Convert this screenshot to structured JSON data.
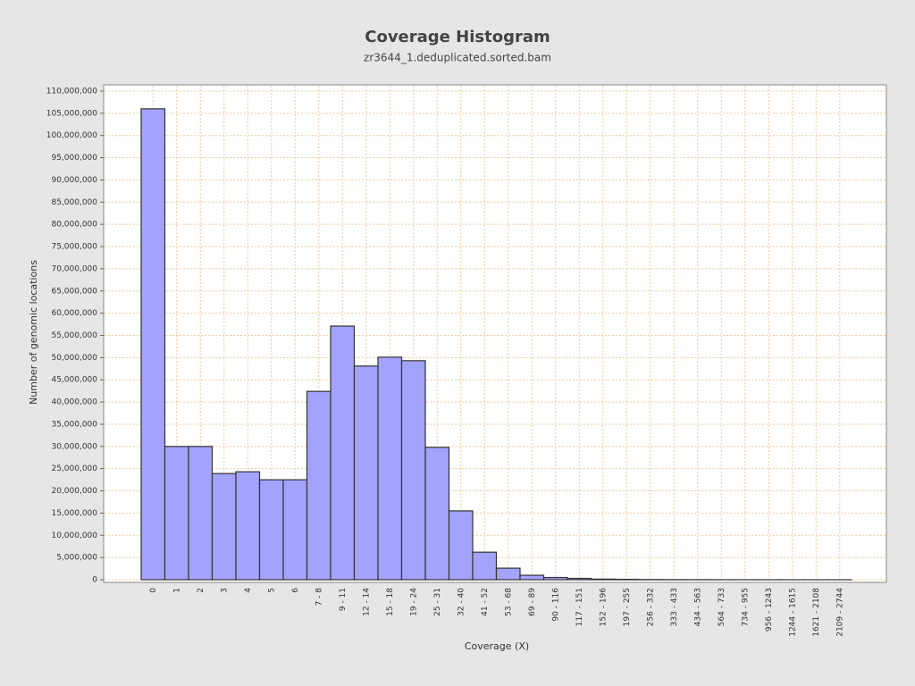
{
  "chart_data": {
    "type": "bar",
    "title": "Coverage Histogram",
    "subtitle": "zr3644_1.deduplicated.sorted.bam",
    "x_label": "Coverage (X)",
    "y_label": "Number of genomic locations",
    "categories": [
      "0",
      "1",
      "2",
      "3",
      "4",
      "5",
      "6",
      "7 - 8",
      "9 - 11",
      "12 - 14",
      "15 - 18",
      "19 - 24",
      "25 - 31",
      "32 - 40",
      "41 - 52",
      "53 - 68",
      "69 - 89",
      "90 - 116",
      "117 - 151",
      "152 - 196",
      "197 - 255",
      "256 - 332",
      "333 - 433",
      "434 - 563",
      "564 - 733",
      "734 - 955",
      "956 - 1243",
      "1244 - 1615",
      "1621 - 2108",
      "2109 - 2744"
    ],
    "values": [
      106000000,
      30000000,
      30000000,
      23900000,
      24300000,
      22500000,
      22500000,
      42400000,
      57100000,
      48100000,
      50100000,
      49300000,
      29800000,
      15500000,
      6200000,
      2600000,
      1000000,
      500000,
      300000,
      150000,
      100000,
      50000,
      30000,
      20000,
      10000,
      8000,
      5000,
      3000,
      2000,
      1000
    ],
    "color": "#a3a3fc",
    "edge_color": "#333333",
    "ylim": [
      -600000,
      111400000
    ],
    "yticks": [
      0,
      {
        "value": 5000000,
        "label": "5,000,000"
      },
      {
        "value": 10000000,
        "label": "10,000,000"
      },
      {
        "value": 15000000,
        "label": "15,000,000"
      },
      {
        "value": 20000000,
        "label": "20,000,000"
      },
      {
        "value": 25000000,
        "label": "25,000,000"
      },
      {
        "value": 30000000,
        "label": "30,000,000"
      },
      {
        "value": 35000000,
        "label": "35,000,000"
      },
      {
        "value": 40000000,
        "label": "40,000,000"
      },
      {
        "value": 45000000,
        "label": "45,000,000"
      },
      {
        "value": 50000000,
        "label": "50,000,000"
      },
      {
        "value": 55000000,
        "label": "55,000,000"
      },
      {
        "value": 60000000,
        "label": "60,000,000"
      },
      {
        "value": 65000000,
        "label": "65,000,000"
      },
      {
        "value": 70000000,
        "label": "70,000,000"
      },
      {
        "value": 75000000,
        "label": "75,000,000"
      },
      {
        "value": 80000000,
        "label": "80,000,000"
      },
      {
        "value": 85000000,
        "label": "85,000,000"
      },
      {
        "value": 90000000,
        "label": "90,000,000"
      },
      {
        "value": 95000000,
        "label": "95,000,000"
      },
      {
        "value": 100000000,
        "label": "100,000,000"
      },
      {
        "value": 105000000,
        "label": "105,000,000"
      },
      {
        "value": 110000000,
        "label": "110,000,000"
      }
    ],
    "grid": true
  }
}
